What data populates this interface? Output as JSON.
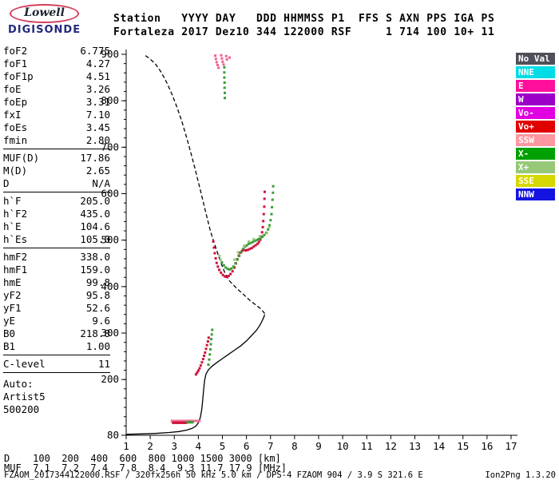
{
  "logo": {
    "line1": "Lowell",
    "line2": "DIGISONDE"
  },
  "header": {
    "line1": "Station   YYYY DAY   DDD HHMMSS P1  FFS S AXN PPS IGA PS",
    "line2": "Fortaleza 2017 Dez10 344 122000 RSF     1 714 100 10+ 11"
  },
  "params": {
    "groups": [
      {
        "rows": [
          [
            "foF2",
            "6.775"
          ],
          [
            "foF1",
            "4.27"
          ],
          [
            "foF1p",
            "4.51"
          ],
          [
            "foE",
            "3.26"
          ],
          [
            "foEp",
            "3.31"
          ],
          [
            "fxI",
            "7.10"
          ],
          [
            "foEs",
            "3.45"
          ],
          [
            "fmin",
            "2.80"
          ]
        ]
      },
      {
        "rows": [
          [
            "MUF(D)",
            "17.86"
          ],
          [
            "M(D)",
            "2.65"
          ],
          [
            "D",
            "N/A"
          ]
        ]
      },
      {
        "rows": [
          [
            "h`F",
            "205.0"
          ],
          [
            "h`F2",
            "435.0"
          ],
          [
            "h`E",
            "104.6"
          ],
          [
            "h`Es",
            "105.0"
          ]
        ]
      },
      {
        "rows": [
          [
            "hmF2",
            "338.0"
          ],
          [
            "hmF1",
            "159.0"
          ],
          [
            "hmE",
            "99.8"
          ],
          [
            "yF2",
            "95.8"
          ],
          [
            "yF1",
            "52.6"
          ],
          [
            "yE",
            "9.6"
          ],
          [
            "B0",
            "218.8"
          ],
          [
            "B1",
            "1.00"
          ]
        ]
      },
      {
        "rows": [
          [
            "C-level",
            "11"
          ]
        ]
      },
      {
        "underline": false,
        "rows": [
          [
            "Auto:",
            ""
          ],
          [
            "Artist5",
            ""
          ],
          [
            "500200",
            ""
          ]
        ]
      }
    ]
  },
  "legend": {
    "items": [
      {
        "label": "No Val",
        "color": "#50505a"
      },
      {
        "label": "NNE",
        "color": "#00dce6"
      },
      {
        "label": "E",
        "color": "#ff0f9b"
      },
      {
        "label": "W",
        "color": "#9b00c8"
      },
      {
        "label": "Vo-",
        "color": "#e100e1"
      },
      {
        "label": "Vo+",
        "color": "#e10000"
      },
      {
        "label": "SSW",
        "color": "#ff96a0"
      },
      {
        "label": "X-",
        "color": "#00a000"
      },
      {
        "label": "X+",
        "color": "#96c878"
      },
      {
        "label": "SSE",
        "color": "#d7d700"
      },
      {
        "label": "NNW",
        "color": "#1414e1"
      }
    ]
  },
  "footer": {
    "d_row": "D    100  200  400  600  800 1000 1500 3000 [km]",
    "muf_row": "MUF  7.1  7.2  7.4  7.8  8.4  9.3 11.7 17.9 [MHz]",
    "status_left": "FZAOM_2017344122000.RSF / 320fx256h 50 kHz 5.0 km / DPS-4 FZAOM 904 / 3.9 S 321.6 E",
    "status_right": "Ion2Png 1.3.20"
  },
  "chart_data": {
    "type": "scatter",
    "title": "Digisonde ionogram Fortaleza 2017 Dez10 344 122000",
    "x_axis": {
      "unit": "MHz",
      "min": 1,
      "max": 17,
      "ticks": [
        1,
        2,
        3,
        4,
        5,
        6,
        7,
        8,
        9,
        10,
        11,
        12,
        13,
        14,
        15,
        16,
        17
      ]
    },
    "y_axis": {
      "unit": "km",
      "min": 80,
      "max": 900,
      "ticks": [
        900,
        800,
        700,
        600,
        500,
        400,
        300,
        200,
        80
      ]
    },
    "lines": [
      {
        "name": "true-height-profile",
        "style": "solid",
        "color": "#000000",
        "points": [
          [
            1.0,
            82
          ],
          [
            1.6,
            83
          ],
          [
            2.2,
            84
          ],
          [
            2.8,
            86
          ],
          [
            3.2,
            88
          ],
          [
            3.5,
            91
          ],
          [
            3.75,
            95
          ],
          [
            3.9,
            100
          ],
          [
            4.0,
            107
          ],
          [
            4.08,
            118
          ],
          [
            4.14,
            135
          ],
          [
            4.18,
            155
          ],
          [
            4.22,
            178
          ],
          [
            4.26,
            198
          ],
          [
            4.32,
            212
          ],
          [
            4.42,
            221
          ],
          [
            4.58,
            229
          ],
          [
            4.78,
            237
          ],
          [
            5.0,
            245
          ],
          [
            5.25,
            254
          ],
          [
            5.5,
            263
          ],
          [
            5.75,
            272
          ],
          [
            6.0,
            283
          ],
          [
            6.2,
            294
          ],
          [
            6.4,
            305
          ],
          [
            6.55,
            316
          ],
          [
            6.65,
            326
          ],
          [
            6.72,
            334
          ],
          [
            6.76,
            340
          ]
        ]
      },
      {
        "name": "topside-extrapolation",
        "style": "dashed",
        "color": "#000000",
        "points": [
          [
            6.76,
            342
          ],
          [
            6.6,
            352
          ],
          [
            6.4,
            360
          ],
          [
            6.15,
            370
          ],
          [
            5.9,
            382
          ],
          [
            5.6,
            396
          ],
          [
            5.3,
            412
          ],
          [
            5.1,
            430
          ],
          [
            4.95,
            450
          ],
          [
            4.8,
            472
          ],
          [
            4.65,
            495
          ],
          [
            4.5,
            520
          ],
          [
            4.38,
            545
          ],
          [
            4.25,
            572
          ],
          [
            4.12,
            600
          ],
          [
            4.0,
            625
          ],
          [
            3.88,
            650
          ],
          [
            3.74,
            678
          ],
          [
            3.6,
            705
          ],
          [
            3.45,
            732
          ],
          [
            3.3,
            758
          ],
          [
            3.12,
            785
          ],
          [
            2.92,
            812
          ],
          [
            2.7,
            838
          ],
          [
            2.45,
            862
          ],
          [
            2.2,
            880
          ],
          [
            1.95,
            892
          ],
          [
            1.72,
            900
          ]
        ]
      }
    ],
    "point_series": [
      {
        "name": "f2-o-trace",
        "color": "#d0103a",
        "points": [
          [
            4.62,
            497
          ],
          [
            4.65,
            484
          ],
          [
            4.68,
            472
          ],
          [
            4.72,
            461
          ],
          [
            4.76,
            451
          ],
          [
            4.81,
            443
          ],
          [
            4.87,
            436
          ],
          [
            4.94,
            430
          ],
          [
            5.02,
            425
          ],
          [
            5.1,
            422
          ],
          [
            5.18,
            421
          ],
          [
            5.26,
            423
          ],
          [
            5.34,
            427
          ],
          [
            5.42,
            433
          ],
          [
            5.5,
            441
          ],
          [
            5.56,
            450
          ],
          [
            5.62,
            459
          ],
          [
            5.68,
            467
          ],
          [
            5.74,
            473
          ],
          [
            5.82,
            477
          ],
          [
            5.9,
            479
          ],
          [
            5.98,
            478
          ],
          [
            6.06,
            479
          ],
          [
            6.14,
            481
          ],
          [
            6.22,
            483
          ],
          [
            6.3,
            486
          ],
          [
            6.38,
            489
          ],
          [
            6.46,
            492
          ],
          [
            6.52,
            496
          ],
          [
            6.58,
            501
          ],
          [
            6.62,
            508
          ],
          [
            6.65,
            517
          ],
          [
            6.68,
            528
          ],
          [
            6.7,
            541
          ],
          [
            6.72,
            556
          ],
          [
            6.74,
            572
          ],
          [
            6.75,
            589
          ],
          [
            6.76,
            604
          ]
        ]
      },
      {
        "name": "f2-x-trace",
        "color": "#3c9b35",
        "points": [
          [
            4.98,
            452
          ],
          [
            5.06,
            446
          ],
          [
            5.14,
            441
          ],
          [
            5.22,
            438
          ],
          [
            5.3,
            437
          ],
          [
            5.38,
            439
          ],
          [
            5.46,
            443
          ],
          [
            5.54,
            450
          ],
          [
            5.62,
            458
          ],
          [
            5.7,
            466
          ],
          [
            5.78,
            474
          ],
          [
            5.86,
            481
          ],
          [
            5.94,
            486
          ],
          [
            6.02,
            489
          ],
          [
            6.1,
            492
          ],
          [
            6.18,
            494
          ],
          [
            6.26,
            496
          ],
          [
            6.34,
            498
          ],
          [
            6.42,
            500
          ],
          [
            6.5,
            502
          ],
          [
            6.58,
            504
          ],
          [
            6.66,
            507
          ],
          [
            6.74,
            511
          ],
          [
            6.82,
            516
          ],
          [
            6.9,
            523
          ],
          [
            6.96,
            532
          ],
          [
            7.0,
            543
          ],
          [
            7.04,
            556
          ],
          [
            7.06,
            571
          ],
          [
            7.08,
            587
          ],
          [
            7.1,
            602
          ],
          [
            7.11,
            616
          ]
        ]
      },
      {
        "name": "f2-x-speckle",
        "color": "#96c878",
        "points": [
          [
            4.88,
            466
          ],
          [
            4.93,
            458
          ],
          [
            5.5,
            458
          ],
          [
            5.65,
            474
          ],
          [
            5.9,
            488
          ],
          [
            6.1,
            497
          ],
          [
            6.3,
            502
          ],
          [
            6.55,
            508
          ],
          [
            6.85,
            515
          ],
          [
            6.95,
            528
          ]
        ]
      },
      {
        "name": "f1-o-trace",
        "color": "#d0103a",
        "points": [
          [
            3.9,
            211
          ],
          [
            3.95,
            215
          ],
          [
            4.0,
            219
          ],
          [
            4.05,
            224
          ],
          [
            4.1,
            230
          ],
          [
            4.15,
            237
          ],
          [
            4.2,
            244
          ],
          [
            4.24,
            251
          ],
          [
            4.28,
            258
          ],
          [
            4.32,
            266
          ],
          [
            4.36,
            274
          ],
          [
            4.4,
            282
          ],
          [
            4.43,
            290
          ]
        ]
      },
      {
        "name": "f1-x-trace",
        "color": "#3c9b35",
        "points": [
          [
            4.42,
            232
          ],
          [
            4.45,
            243
          ],
          [
            4.48,
            254
          ],
          [
            4.5,
            265
          ],
          [
            4.52,
            276
          ],
          [
            4.54,
            287
          ],
          [
            4.56,
            297
          ],
          [
            4.58,
            307
          ]
        ]
      },
      {
        "name": "es-pink-trace",
        "color": "#ee6e96",
        "points": [
          [
            2.9,
            111
          ],
          [
            2.95,
            111
          ],
          [
            3.0,
            111
          ],
          [
            3.05,
            111
          ],
          [
            3.1,
            111
          ],
          [
            3.15,
            111
          ],
          [
            3.2,
            111
          ],
          [
            3.25,
            111
          ],
          [
            3.3,
            111
          ],
          [
            3.35,
            111
          ],
          [
            3.4,
            111
          ],
          [
            3.45,
            111
          ],
          [
            3.5,
            111
          ],
          [
            3.55,
            111
          ],
          [
            3.6,
            111
          ],
          [
            3.65,
            111
          ],
          [
            3.7,
            111
          ],
          [
            3.75,
            111
          ],
          [
            3.8,
            111
          ],
          [
            3.85,
            111
          ],
          [
            3.9,
            111
          ],
          [
            3.95,
            111
          ],
          [
            4.0,
            111
          ],
          [
            4.05,
            111
          ]
        ]
      },
      {
        "name": "es-o-trace",
        "color": "#d0103a",
        "points": [
          [
            2.95,
            107
          ],
          [
            3.0,
            107
          ],
          [
            3.05,
            107
          ],
          [
            3.1,
            107
          ],
          [
            3.15,
            107
          ],
          [
            3.2,
            107
          ],
          [
            3.25,
            107
          ],
          [
            3.3,
            107
          ],
          [
            3.35,
            107
          ],
          [
            3.4,
            107
          ],
          [
            3.45,
            107
          ],
          [
            3.5,
            107
          ]
        ]
      },
      {
        "name": "es-x-trace",
        "color": "#3c9b35",
        "points": [
          [
            3.55,
            108
          ],
          [
            3.6,
            108
          ],
          [
            3.65,
            108
          ],
          [
            3.7,
            108
          ],
          [
            3.76,
            108
          ]
        ]
      },
      {
        "name": "second-hop-pink",
        "color": "#f0608c",
        "points": [
          [
            4.7,
            897
          ],
          [
            4.73,
            890
          ],
          [
            4.76,
            883
          ],
          [
            4.8,
            877
          ],
          [
            4.84,
            871
          ],
          [
            4.95,
            898
          ],
          [
            4.98,
            891
          ],
          [
            5.01,
            884
          ],
          [
            5.05,
            878
          ],
          [
            5.16,
            896
          ],
          [
            5.19,
            889
          ],
          [
            5.3,
            893
          ]
        ]
      },
      {
        "name": "second-hop-x",
        "color": "#3c9b35",
        "points": [
          [
            5.08,
            872
          ],
          [
            5.08,
            861
          ],
          [
            5.08,
            850
          ],
          [
            5.09,
            839
          ],
          [
            5.09,
            828
          ],
          [
            5.1,
            817
          ],
          [
            5.1,
            806
          ]
        ]
      }
    ]
  }
}
